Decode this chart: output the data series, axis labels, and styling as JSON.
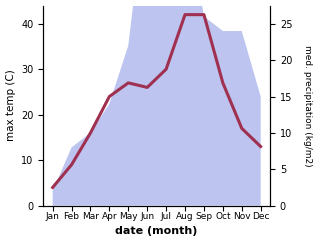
{
  "months": [
    "Jan",
    "Feb",
    "Mar",
    "Apr",
    "May",
    "Jun",
    "Jul",
    "Aug",
    "Sep",
    "Oct",
    "Nov",
    "Dec"
  ],
  "month_indices": [
    0,
    1,
    2,
    3,
    4,
    5,
    6,
    7,
    8,
    9,
    10,
    11
  ],
  "temperature": [
    4,
    9,
    16,
    24,
    27,
    26,
    30,
    42,
    42,
    27,
    17,
    13
  ],
  "precipitation": [
    2,
    8,
    10,
    14,
    22,
    44,
    40,
    42,
    26,
    24,
    24,
    15
  ],
  "temp_color": "#a03050",
  "precip_fill_color": "#bcc4ef",
  "temp_ylim": [
    0,
    44
  ],
  "precip_ylim": [
    0,
    27.5
  ],
  "temp_yticks": [
    0,
    10,
    20,
    30,
    40
  ],
  "precip_yticks": [
    0,
    5,
    10,
    15,
    20,
    25
  ],
  "ylabel_left": "max temp (C)",
  "ylabel_right": "med. precipitation (kg/m2)",
  "xlabel": "date (month)",
  "background_color": "#ffffff",
  "line_width": 2.2,
  "figsize": [
    3.18,
    2.42
  ],
  "dpi": 100
}
